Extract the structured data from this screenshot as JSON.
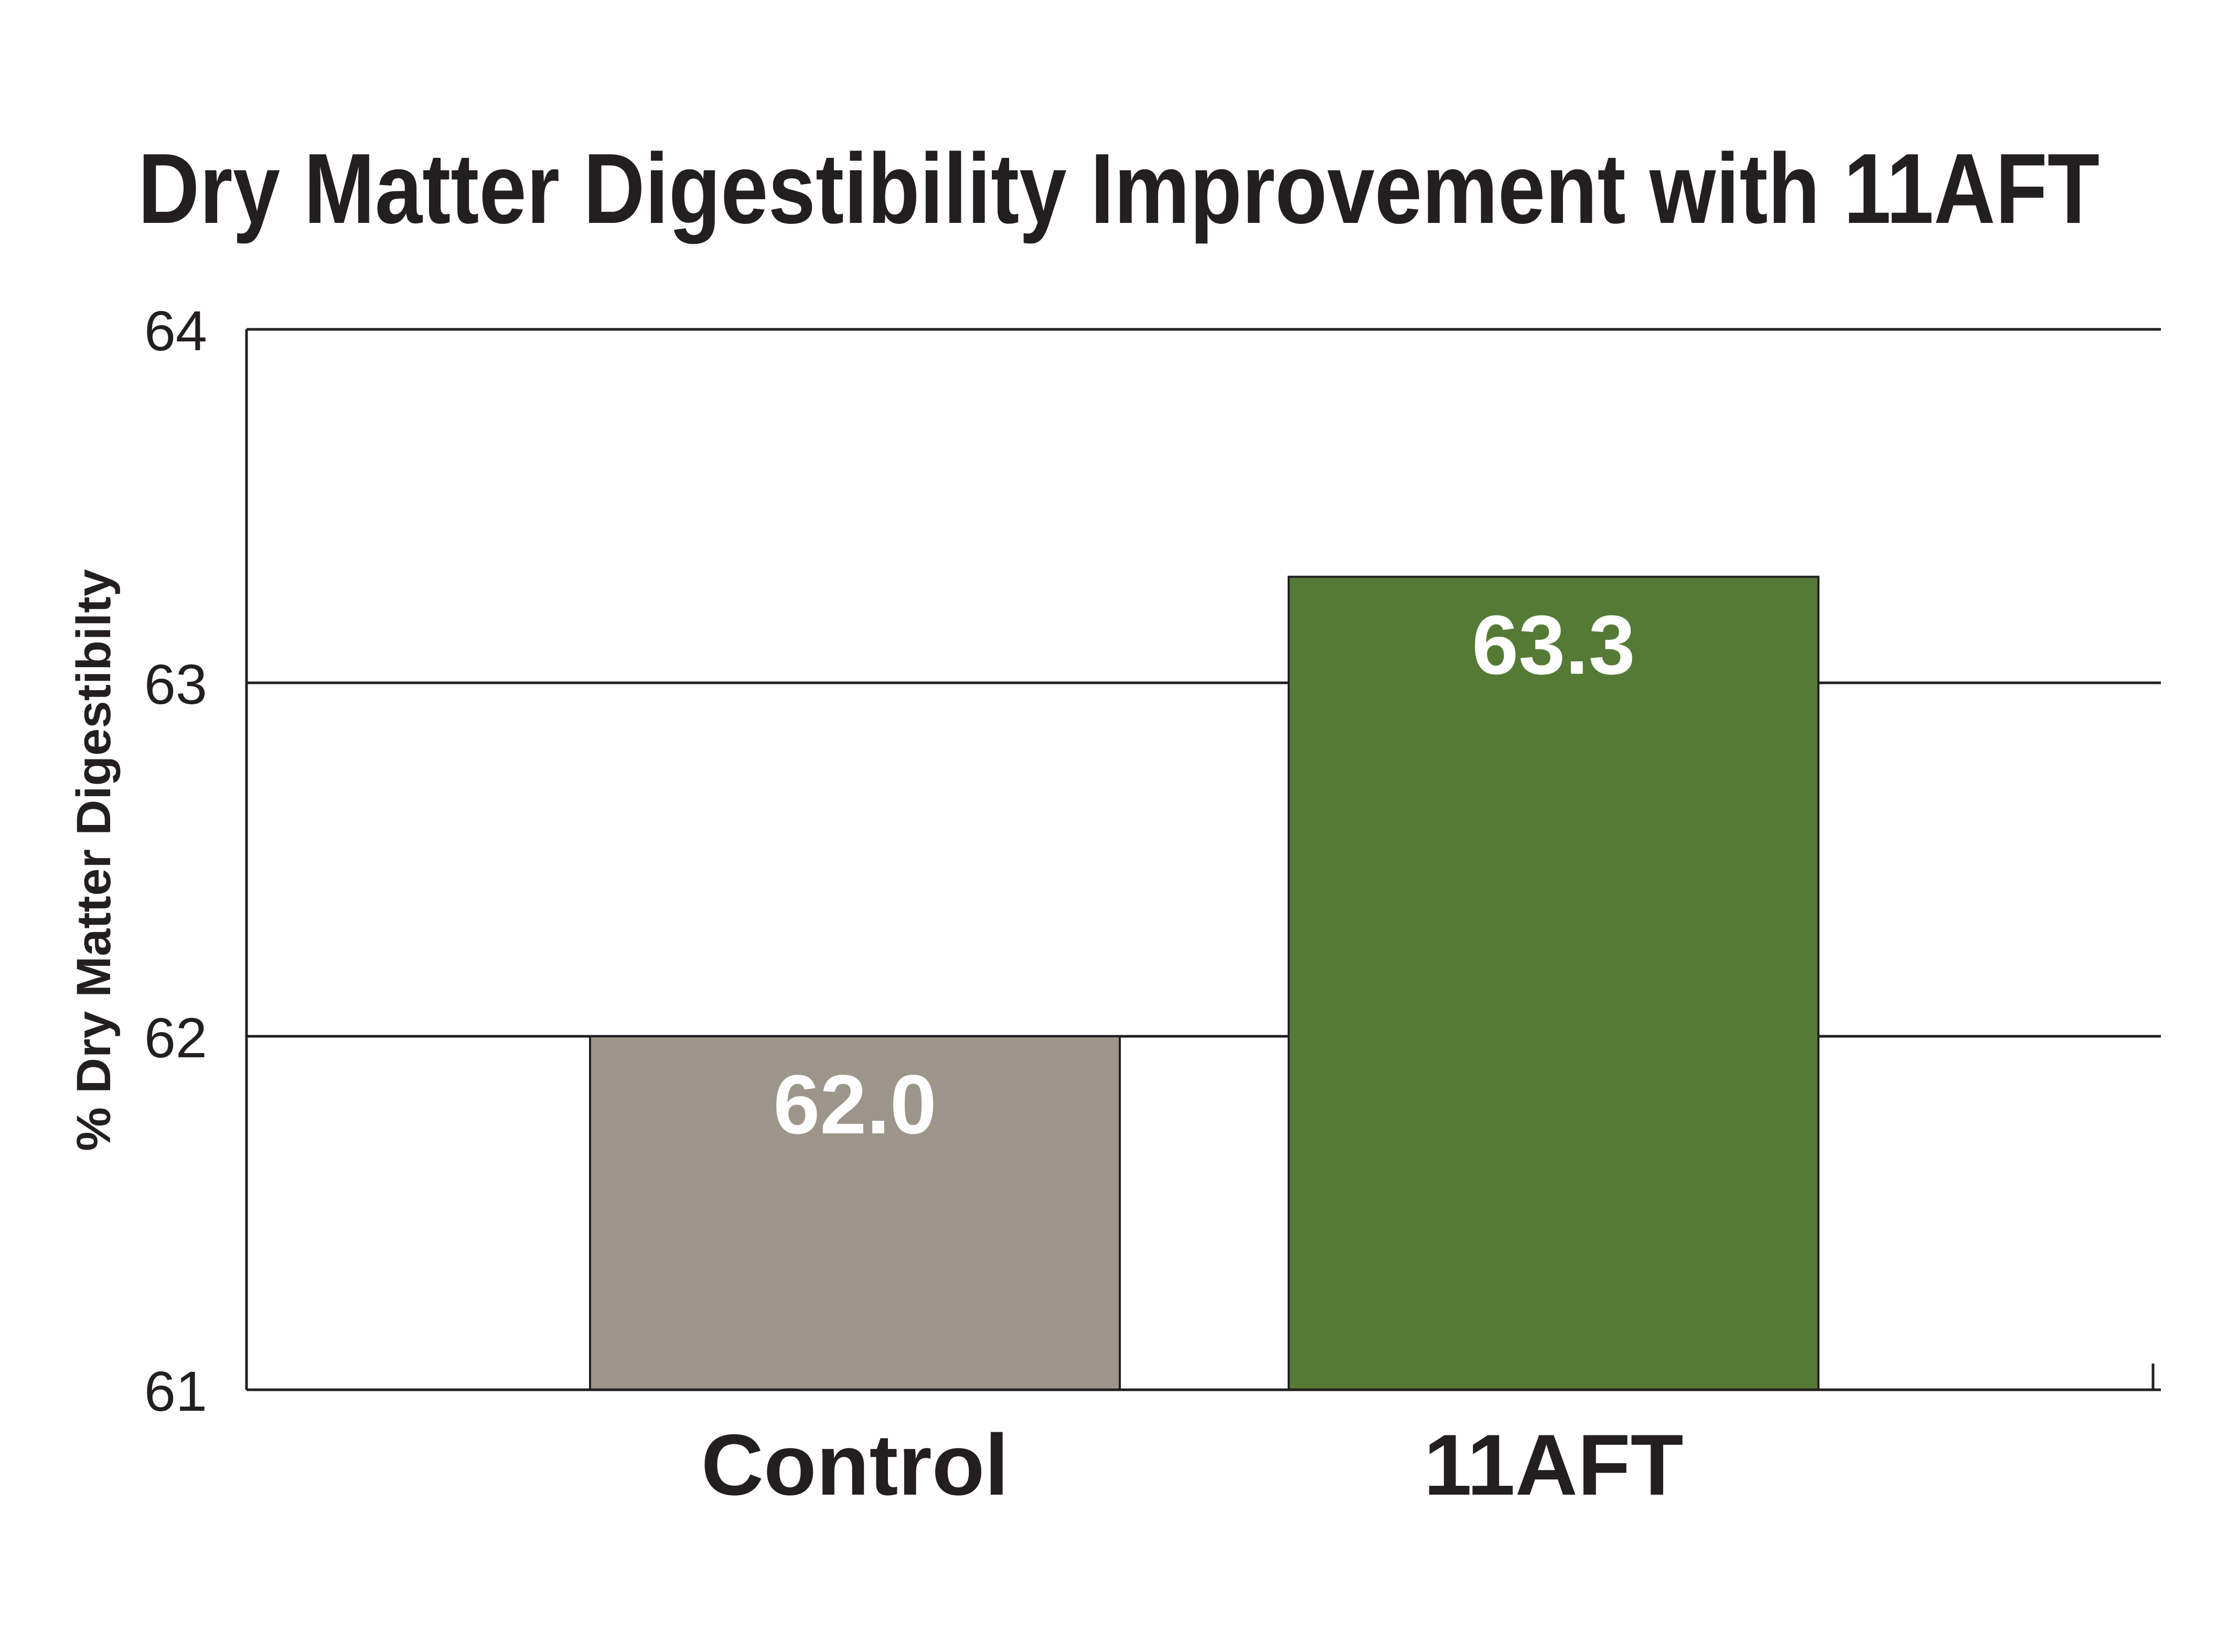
{
  "chart_data": {
    "type": "bar",
    "title": "Dry Matter Digestibility Improvement with 11AFT",
    "xlabel": "",
    "ylabel": "% Dry Matter Digestibilty",
    "categories": [
      "Control",
      "11AFT"
    ],
    "values": [
      62.0,
      63.3
    ],
    "value_labels": [
      "62.0",
      "63.3"
    ],
    "bar_colors": [
      "#9e958a",
      "#557a35"
    ],
    "ylim": [
      61,
      64
    ],
    "yticks": [
      61,
      62,
      63,
      64
    ],
    "ytick_labels": [
      "61",
      "62",
      "63",
      "64"
    ],
    "grid": true,
    "legend": "none"
  },
  "colors": {
    "text": "#231f20",
    "axis": "#231f20",
    "value_label": "#ffffff"
  }
}
